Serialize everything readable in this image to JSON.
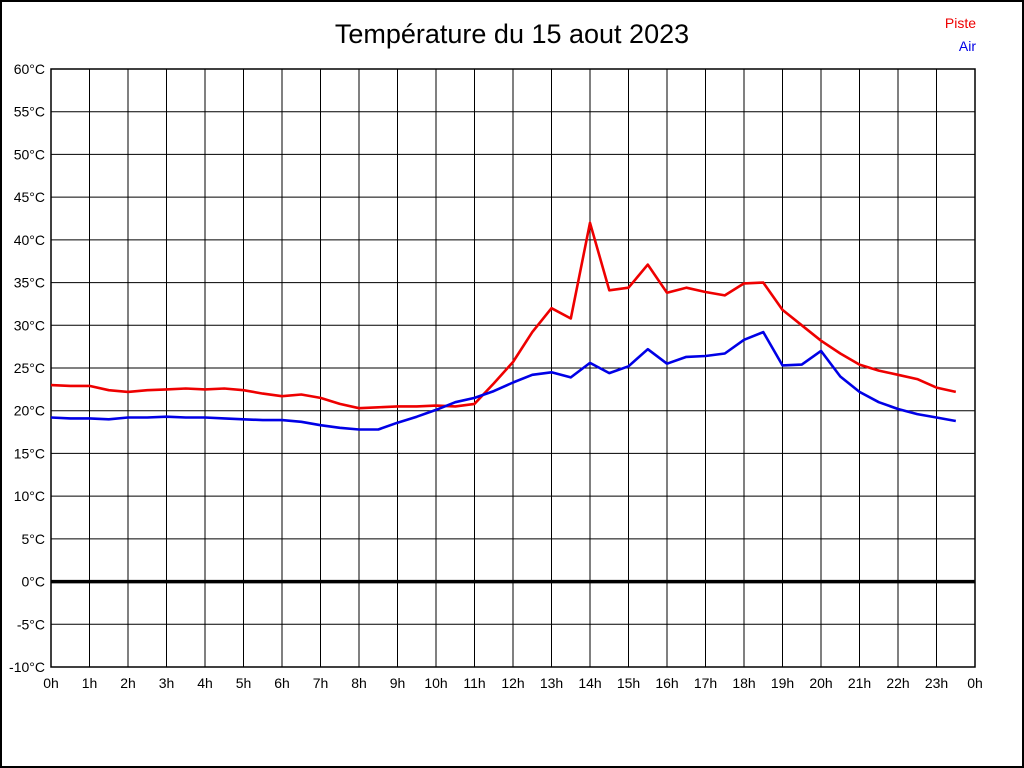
{
  "chart_data": {
    "type": "line",
    "title": "Température du 15 aout 2023",
    "xlabel": "",
    "ylabel": "",
    "xlim": [
      0,
      24
    ],
    "ylim": [
      -10,
      60
    ],
    "grid": true,
    "zero_line_bold": true,
    "legend_position": "top-right",
    "x": [
      0,
      0.5,
      1,
      1.5,
      2,
      2.5,
      3,
      3.5,
      4,
      4.5,
      5,
      5.5,
      6,
      6.5,
      7,
      7.5,
      8,
      8.5,
      9,
      9.5,
      10,
      10.5,
      11,
      11.5,
      12,
      12.5,
      13,
      13.5,
      14,
      14.5,
      15,
      15.5,
      16,
      16.5,
      17,
      17.5,
      18,
      18.5,
      19,
      19.5,
      20,
      20.5,
      21,
      21.5,
      22,
      22.5,
      23,
      23.5
    ],
    "series": [
      {
        "name": "Piste",
        "color": "#ee0000",
        "values": [
          23.0,
          22.9,
          22.9,
          22.4,
          22.2,
          22.4,
          22.5,
          22.6,
          22.5,
          22.6,
          22.4,
          22.0,
          21.7,
          21.9,
          21.5,
          20.8,
          20.3,
          20.4,
          20.5,
          20.5,
          20.6,
          20.5,
          20.8,
          23.2,
          25.7,
          29.2,
          32.0,
          30.8,
          42.0,
          34.1,
          34.4,
          37.1,
          33.8,
          34.4,
          33.9,
          33.5,
          34.9,
          35.0,
          31.8,
          30.0,
          28.2,
          26.7,
          25.4,
          24.7,
          24.2,
          23.7,
          22.7,
          22.2
        ]
      },
      {
        "name": "Air",
        "color": "#0000e6",
        "values": [
          19.2,
          19.1,
          19.1,
          19.0,
          19.2,
          19.2,
          19.3,
          19.2,
          19.2,
          19.1,
          19.0,
          18.9,
          18.9,
          18.7,
          18.3,
          18.0,
          17.8,
          17.8,
          18.6,
          19.3,
          20.1,
          21.0,
          21.5,
          22.3,
          23.3,
          24.2,
          24.5,
          23.9,
          25.6,
          24.4,
          25.2,
          27.2,
          25.5,
          26.3,
          26.4,
          26.7,
          28.3,
          29.2,
          25.3,
          25.4,
          27.0,
          24.0,
          22.2,
          21.0,
          20.2,
          19.6,
          19.2,
          18.8
        ]
      }
    ],
    "y_ticks": [
      {
        "v": 60,
        "label": "60°C"
      },
      {
        "v": 55,
        "label": "55°C"
      },
      {
        "v": 50,
        "label": "50°C"
      },
      {
        "v": 45,
        "label": "45°C"
      },
      {
        "v": 40,
        "label": "40°C"
      },
      {
        "v": 35,
        "label": "35°C"
      },
      {
        "v": 30,
        "label": "30°C"
      },
      {
        "v": 25,
        "label": "25°C"
      },
      {
        "v": 20,
        "label": "20°C"
      },
      {
        "v": 15,
        "label": "15°C"
      },
      {
        "v": 10,
        "label": "10°C"
      },
      {
        "v": 5,
        "label": "5°C"
      },
      {
        "v": 0,
        "label": "0°C"
      },
      {
        "v": -5,
        "label": "-5°C"
      },
      {
        "v": -10,
        "label": "-10°C"
      }
    ],
    "x_ticks": [
      {
        "v": 0,
        "label": "0h"
      },
      {
        "v": 1,
        "label": "1h"
      },
      {
        "v": 2,
        "label": "2h"
      },
      {
        "v": 3,
        "label": "3h"
      },
      {
        "v": 4,
        "label": "4h"
      },
      {
        "v": 5,
        "label": "5h"
      },
      {
        "v": 6,
        "label": "6h"
      },
      {
        "v": 7,
        "label": "7h"
      },
      {
        "v": 8,
        "label": "8h"
      },
      {
        "v": 9,
        "label": "9h"
      },
      {
        "v": 10,
        "label": "10h"
      },
      {
        "v": 11,
        "label": "11h"
      },
      {
        "v": 12,
        "label": "12h"
      },
      {
        "v": 13,
        "label": "13h"
      },
      {
        "v": 14,
        "label": "14h"
      },
      {
        "v": 15,
        "label": "15h"
      },
      {
        "v": 16,
        "label": "16h"
      },
      {
        "v": 17,
        "label": "17h"
      },
      {
        "v": 18,
        "label": "18h"
      },
      {
        "v": 19,
        "label": "19h"
      },
      {
        "v": 20,
        "label": "20h"
      },
      {
        "v": 21,
        "label": "21h"
      },
      {
        "v": 22,
        "label": "22h"
      },
      {
        "v": 23,
        "label": "23h"
      },
      {
        "v": 24,
        "label": "0h"
      }
    ],
    "grid_color": "#000000",
    "background_color": "#ffffff"
  }
}
